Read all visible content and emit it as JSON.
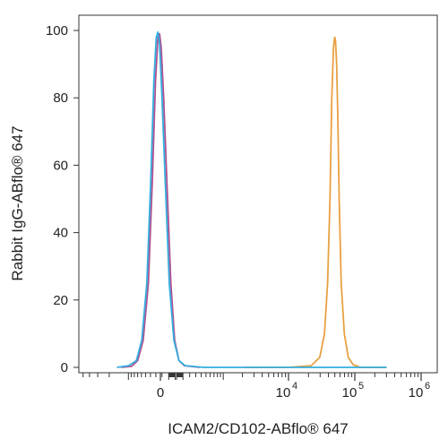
{
  "chart_data": {
    "type": "line",
    "xlabel": "ICAM2/CD102-ABflo® 647",
    "ylabel": "Rabbit IgG-ABflo® 647",
    "ylim": [
      0,
      100
    ],
    "y_ticks": [
      "0",
      "20",
      "40",
      "60",
      "80",
      "100"
    ],
    "x_scale": "biexponential",
    "x_ticks": [
      {
        "base": "0",
        "exp": ""
      },
      {
        "base": "10",
        "exp": "4"
      },
      {
        "base": "10",
        "exp": "5"
      },
      {
        "base": "10",
        "exp": "6"
      }
    ],
    "grid": false,
    "legend": "none",
    "series": [
      {
        "color": "#e8a042",
        "points": [
          [
            2500,
            0
          ],
          [
            10000,
            0
          ],
          [
            20000,
            0.5
          ],
          [
            26000,
            3
          ],
          [
            30000,
            10
          ],
          [
            33000,
            25
          ],
          [
            35500,
            50
          ],
          [
            37500,
            80
          ],
          [
            39500,
            95
          ],
          [
            41000,
            98
          ],
          [
            42000,
            97
          ],
          [
            43500,
            90
          ],
          [
            45000,
            75
          ],
          [
            47000,
            50
          ],
          [
            50000,
            25
          ],
          [
            55000,
            10
          ],
          [
            62000,
            3
          ],
          [
            72000,
            0.8
          ],
          [
            90000,
            0
          ],
          [
            200000,
            0
          ]
        ]
      },
      {
        "color": "#b05090",
        "points": [
          [
            -600,
            0
          ],
          [
            -400,
            0.3
          ],
          [
            -300,
            2
          ],
          [
            -220,
            8
          ],
          [
            -150,
            25
          ],
          [
            -100,
            55
          ],
          [
            -60,
            85
          ],
          [
            -30,
            98
          ],
          [
            -10,
            99
          ],
          [
            10,
            95
          ],
          [
            40,
            80
          ],
          [
            80,
            55
          ],
          [
            130,
            25
          ],
          [
            180,
            8
          ],
          [
            240,
            2
          ],
          [
            320,
            0.5
          ],
          [
            600,
            0
          ]
        ]
      },
      {
        "color": "#33aee0",
        "points": [
          [
            -700,
            0
          ],
          [
            -450,
            0.5
          ],
          [
            -320,
            2
          ],
          [
            -240,
            8
          ],
          [
            -170,
            25
          ],
          [
            -120,
            55
          ],
          [
            -80,
            85
          ],
          [
            -50,
            98
          ],
          [
            -30,
            99.5
          ],
          [
            -10,
            96
          ],
          [
            20,
            80
          ],
          [
            60,
            55
          ],
          [
            110,
            25
          ],
          [
            170,
            8
          ],
          [
            240,
            2
          ],
          [
            330,
            0.5
          ],
          [
            700,
            0
          ],
          [
            5000,
            0
          ],
          [
            50000,
            0
          ],
          [
            200000,
            0
          ]
        ]
      }
    ]
  }
}
